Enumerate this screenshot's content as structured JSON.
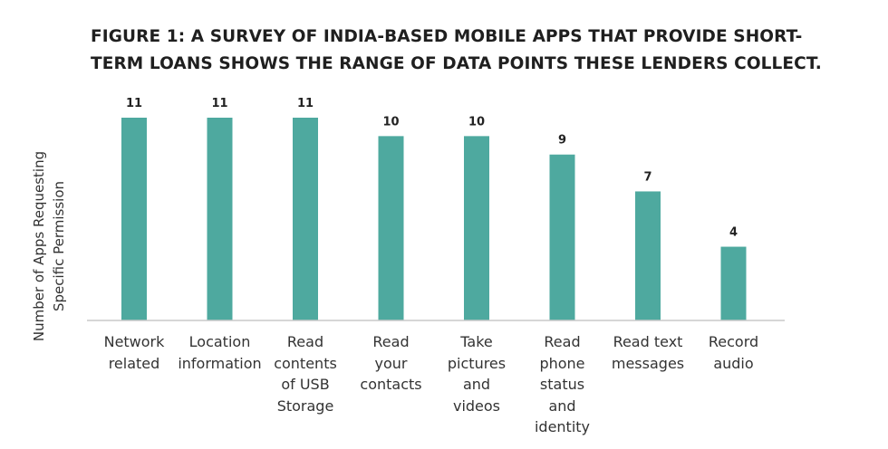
{
  "chart_data": {
    "type": "bar",
    "title_lines": [
      "FIGURE 1: A SURVEY OF INDIA-BASED MOBILE APPS THAT PROVIDE SHORT-",
      "TERM LOANS SHOWS THE RANGE OF DATA POINTS THESE LENDERS COLLECT."
    ],
    "ylabel_lines": [
      "Number of Apps Requesting",
      "Specific Permission"
    ],
    "xlabel": "",
    "categories": [
      "Network\nrelated",
      "Location\ninformation",
      "Read\ncontents\nof USB\nStorage",
      "Read\nyour\ncontacts",
      "Take\npictures\nand\nvideos",
      "Read\nphone\nstatus\nand\nidentity",
      "Read text\nmessages",
      "Record\naudio"
    ],
    "values": [
      11,
      11,
      11,
      10,
      10,
      9,
      7,
      4
    ],
    "ylim": [
      0,
      11
    ],
    "grid": false,
    "bar_color": "#4ea99f",
    "axis_color": "#c9c9c9"
  }
}
